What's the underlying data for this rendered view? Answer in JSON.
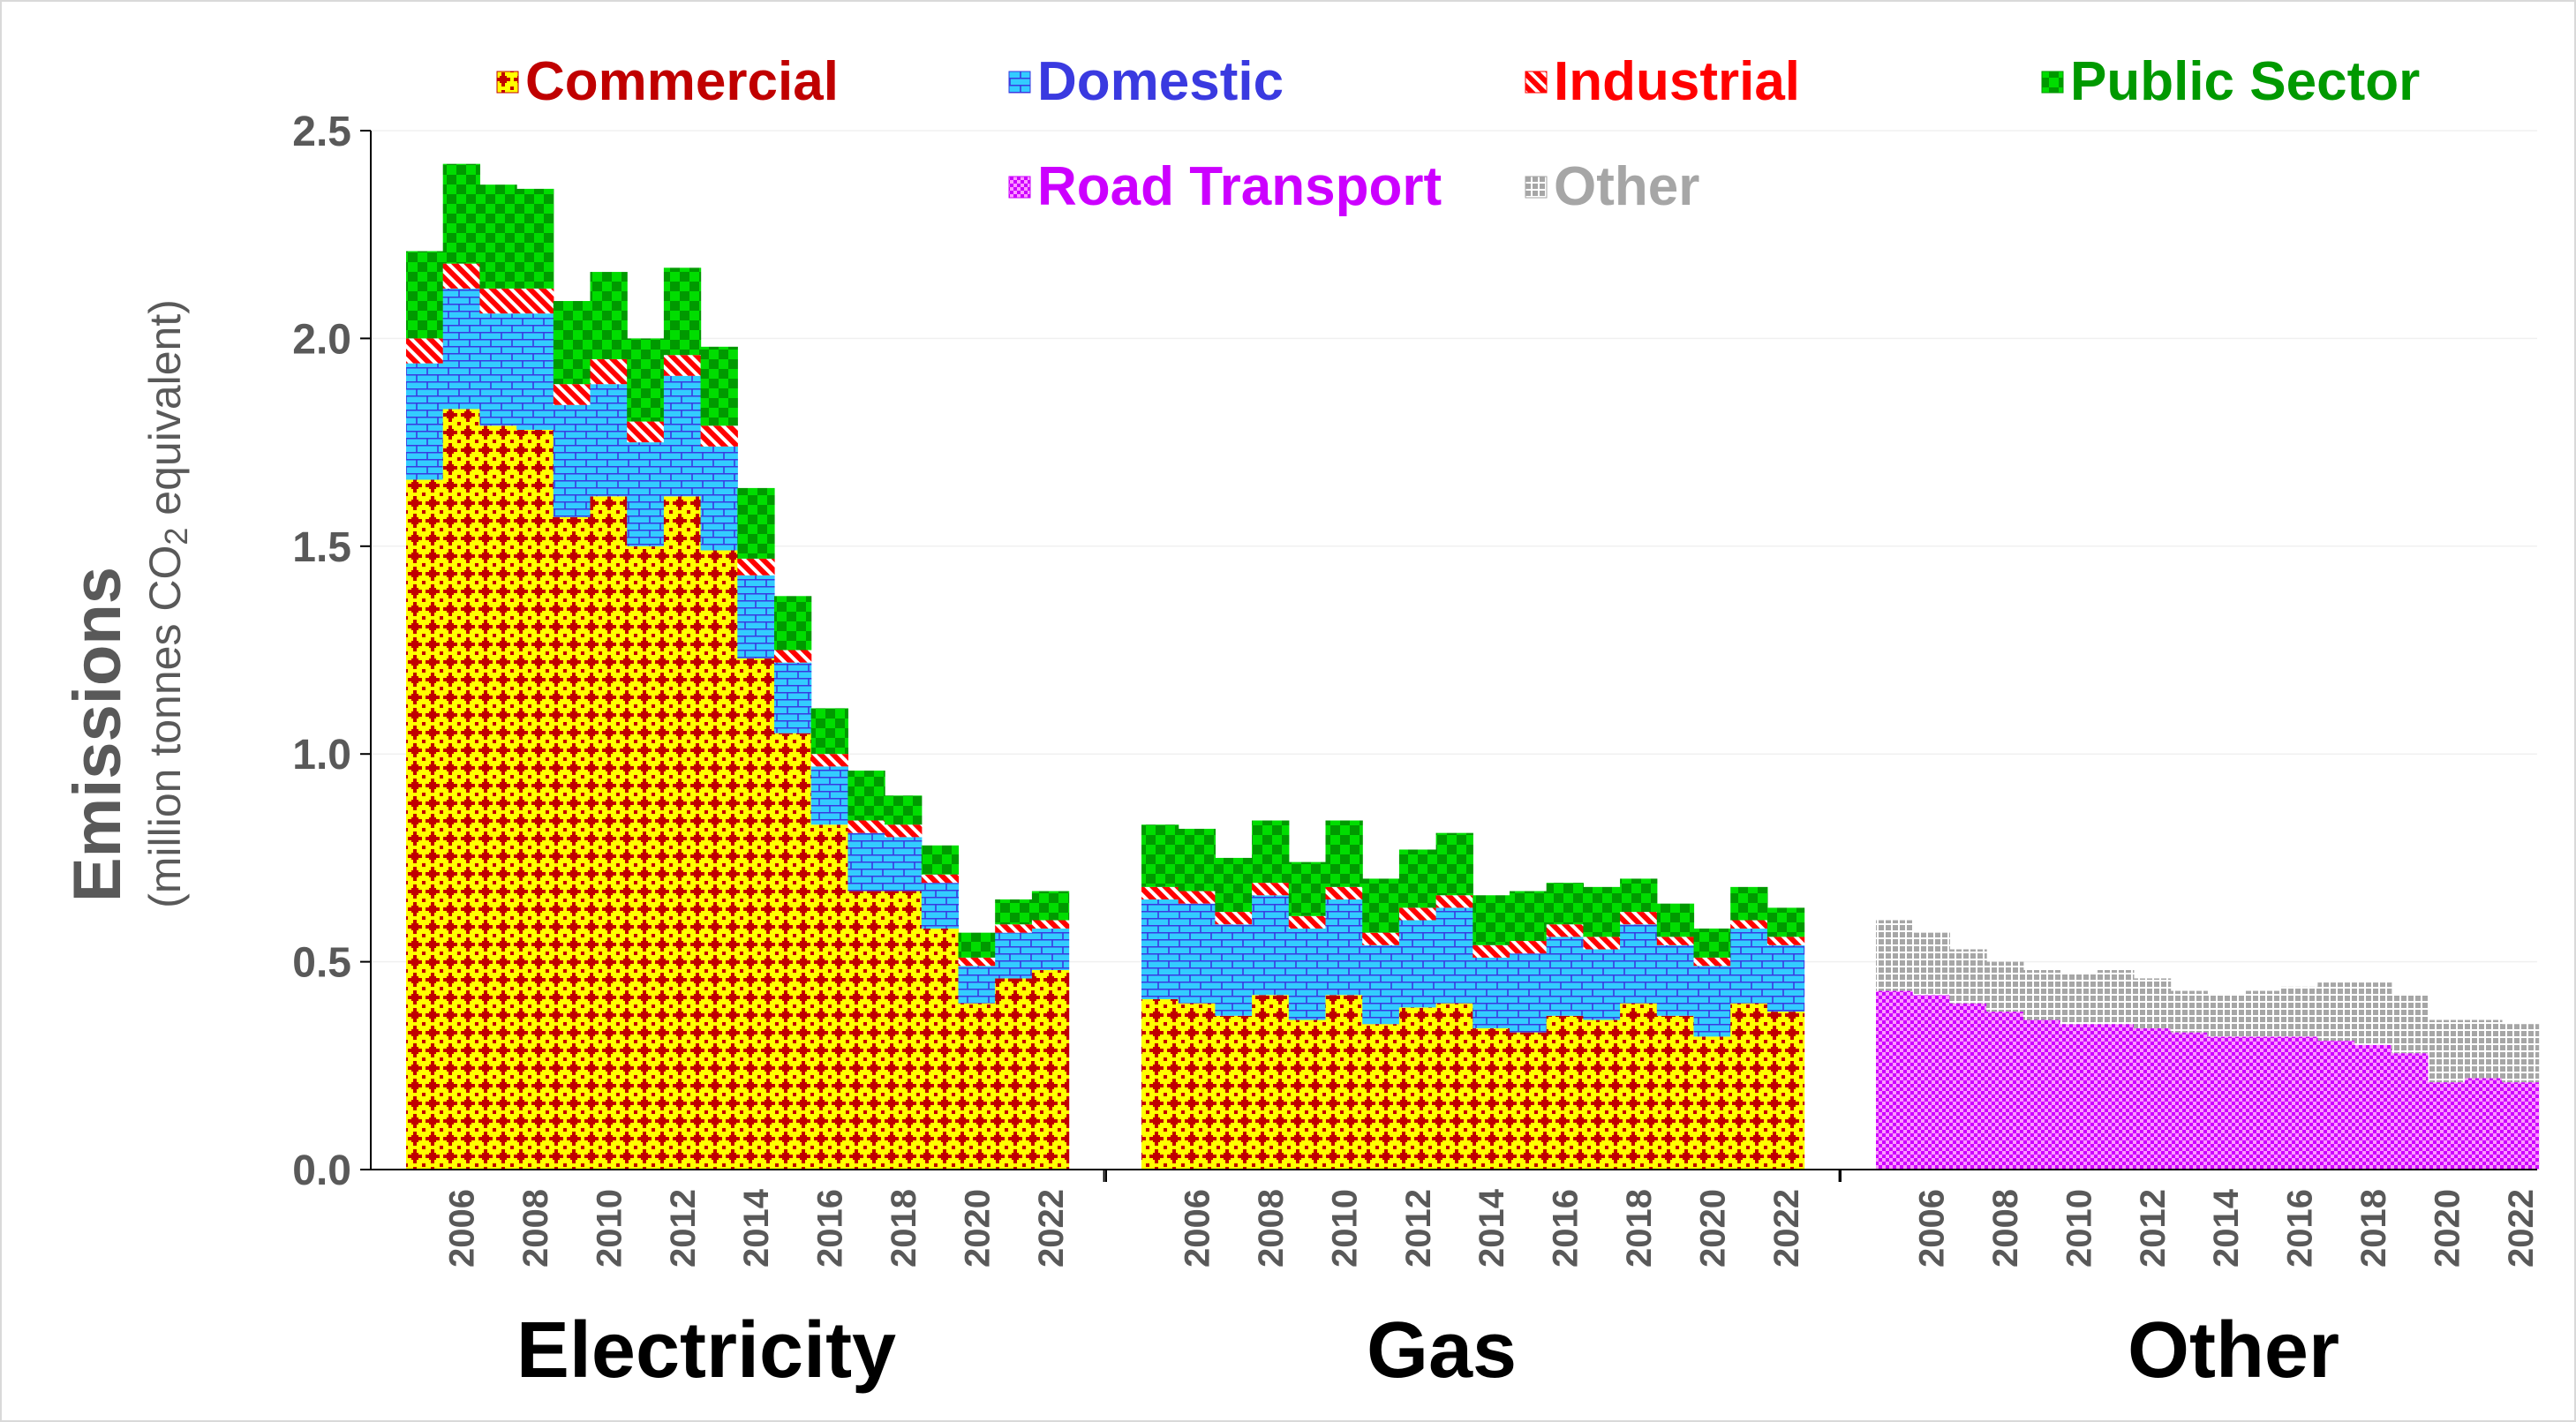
{
  "chart_data": {
    "type": "bar",
    "stacked": true,
    "ylabel": "Emissions",
    "ylabel_sub_parts": [
      "(million tonnes CO",
      "2",
      " equivalent)"
    ],
    "ylim": [
      0,
      2.5
    ],
    "yticks": [
      "0.0",
      "0.5",
      "1.0",
      "1.5",
      "2.0",
      "2.5"
    ],
    "grid": true,
    "legend_position": "top",
    "years": [
      2005,
      2006,
      2007,
      2008,
      2009,
      2010,
      2011,
      2012,
      2013,
      2014,
      2015,
      2016,
      2017,
      2018,
      2019,
      2020,
      2021,
      2022
    ],
    "year_tick_labels": [
      "2006",
      "2008",
      "2010",
      "2012",
      "2014",
      "2016",
      "2018",
      "2020",
      "2022"
    ],
    "series_meta": [
      {
        "key": "commercial",
        "name": "Commercial",
        "color": "#c00000",
        "accent": "#ffff00",
        "pattern": "diamond-dots"
      },
      {
        "key": "domestic",
        "name": "Domestic",
        "color": "#3a3ae0",
        "accent": "#33ccff",
        "pattern": "bricks"
      },
      {
        "key": "industrial",
        "name": "Industrial",
        "color": "#ff0000",
        "accent": "#ffffff",
        "pattern": "diagonal-stripes"
      },
      {
        "key": "public",
        "name": "Public Sector",
        "color": "#009900",
        "accent": "#00dd00",
        "pattern": "checker"
      },
      {
        "key": "road",
        "name": "Road Transport",
        "color": "#cc00ff",
        "accent": "#ff99ff",
        "pattern": "small-dots"
      },
      {
        "key": "other",
        "name": "Other",
        "color": "#a6a6a6",
        "accent": "#ffffff",
        "pattern": "grid"
      }
    ],
    "groups": [
      {
        "name": "Electricity",
        "stack": {
          "commercial": [
            1.66,
            1.83,
            1.79,
            1.78,
            1.57,
            1.62,
            1.5,
            1.62,
            1.49,
            1.23,
            1.05,
            0.83,
            0.67,
            0.67,
            0.58,
            0.4,
            0.46,
            0.48
          ],
          "domestic": [
            0.28,
            0.29,
            0.27,
            0.28,
            0.27,
            0.27,
            0.25,
            0.29,
            0.25,
            0.2,
            0.17,
            0.14,
            0.14,
            0.13,
            0.11,
            0.09,
            0.11,
            0.1
          ],
          "industrial": [
            0.06,
            0.06,
            0.06,
            0.06,
            0.05,
            0.06,
            0.05,
            0.05,
            0.05,
            0.04,
            0.03,
            0.03,
            0.03,
            0.03,
            0.02,
            0.02,
            0.02,
            0.02
          ],
          "public": [
            0.21,
            0.24,
            0.25,
            0.24,
            0.2,
            0.21,
            0.2,
            0.21,
            0.19,
            0.17,
            0.13,
            0.11,
            0.12,
            0.07,
            0.07,
            0.06,
            0.06,
            0.07
          ]
        }
      },
      {
        "name": "Gas",
        "stack": {
          "commercial": [
            0.41,
            0.4,
            0.37,
            0.42,
            0.36,
            0.42,
            0.35,
            0.39,
            0.4,
            0.34,
            0.33,
            0.37,
            0.36,
            0.4,
            0.37,
            0.32,
            0.4,
            0.38
          ],
          "domestic": [
            0.24,
            0.24,
            0.22,
            0.24,
            0.22,
            0.23,
            0.19,
            0.21,
            0.23,
            0.17,
            0.19,
            0.19,
            0.17,
            0.19,
            0.17,
            0.17,
            0.18,
            0.16
          ],
          "industrial": [
            0.03,
            0.03,
            0.03,
            0.03,
            0.03,
            0.03,
            0.03,
            0.03,
            0.03,
            0.03,
            0.03,
            0.03,
            0.03,
            0.03,
            0.02,
            0.02,
            0.02,
            0.02
          ],
          "public": [
            0.15,
            0.15,
            0.13,
            0.15,
            0.13,
            0.16,
            0.13,
            0.14,
            0.15,
            0.12,
            0.12,
            0.1,
            0.12,
            0.08,
            0.08,
            0.07,
            0.08,
            0.07
          ]
        }
      },
      {
        "name": "Other",
        "stack": {
          "road": [
            0.43,
            0.42,
            0.4,
            0.38,
            0.36,
            0.35,
            0.35,
            0.34,
            0.33,
            0.32,
            0.32,
            0.32,
            0.31,
            0.3,
            0.28,
            0.21,
            0.22,
            0.21
          ],
          "other": [
            0.17,
            0.15,
            0.13,
            0.12,
            0.12,
            0.12,
            0.13,
            0.12,
            0.1,
            0.1,
            0.11,
            0.12,
            0.14,
            0.15,
            0.14,
            0.15,
            0.14,
            0.14
          ]
        }
      }
    ]
  }
}
